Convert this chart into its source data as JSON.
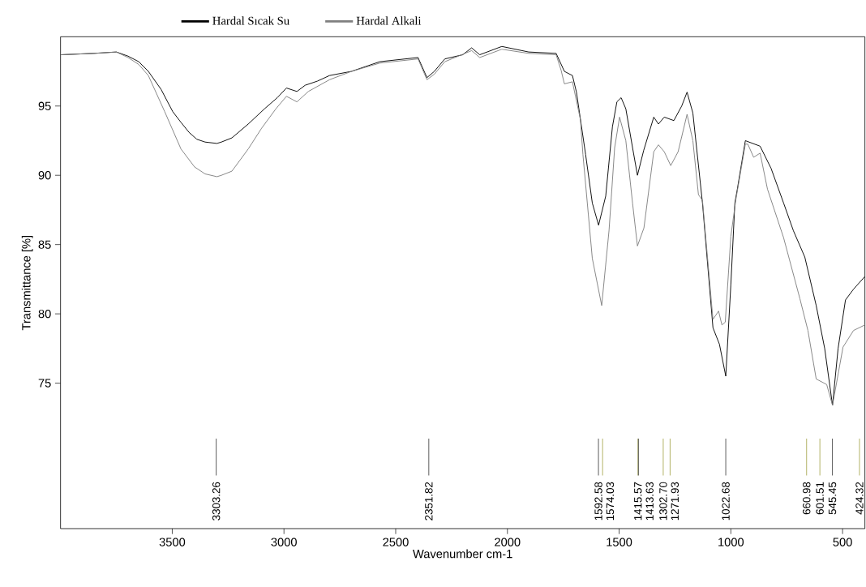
{
  "chart_data": {
    "type": "line",
    "xlabel": "Wavenumber cm-1",
    "ylabel": "Transmittance [%]",
    "xlim": [
      4000,
      400
    ],
    "xticks": [
      3500,
      3000,
      2500,
      2000,
      1500,
      1000,
      500
    ],
    "ylim": [
      64.5,
      100
    ],
    "yticks": [
      75,
      80,
      85,
      90,
      95
    ],
    "grid": false,
    "legend": "top",
    "marker": "none",
    "line_style": "solid",
    "series": [
      {
        "name": "Hardal Sıcak Su",
        "color": "#000000",
        "x": [
          4000,
          3850,
          3750,
          3698,
          3650,
          3607,
          3550,
          3498,
          3460,
          3425,
          3390,
          3353,
          3300,
          3280,
          3233,
          3160,
          3087,
          3030,
          2989,
          2942,
          2905,
          2850,
          2796,
          2698,
          2571,
          2400,
          2360,
          2327,
          2280,
          2200,
          2160,
          2124,
          2025,
          1905,
          1782,
          1745,
          1709,
          1691,
          1650,
          1620,
          1592,
          1560,
          1530,
          1510,
          1491,
          1470,
          1440,
          1418,
          1390,
          1345,
          1324,
          1298,
          1255,
          1220,
          1196,
          1170,
          1127,
          1080,
          1051,
          1035,
          1022.68,
          1000,
          982,
          971,
          935,
          869,
          820,
          764,
          720,
          669,
          618,
          580,
          545,
          520,
          487,
          450,
          400
        ],
        "values": [
          98.7,
          98.8,
          98.9,
          98.6,
          98.2,
          97.5,
          96.2,
          94.6,
          93.8,
          93.1,
          92.6,
          92.4,
          92.3,
          92.4,
          92.7,
          93.7,
          94.8,
          95.6,
          96.3,
          96.05,
          96.5,
          96.8,
          97.2,
          97.5,
          98.2,
          98.5,
          97.05,
          97.5,
          98.4,
          98.7,
          99.2,
          98.7,
          99.3,
          98.9,
          98.8,
          97.5,
          97.2,
          96.0,
          91.5,
          88.0,
          86.4,
          88.5,
          93.5,
          95.3,
          95.6,
          94.8,
          92.0,
          90.0,
          91.8,
          94.2,
          93.7,
          94.2,
          93.95,
          95.0,
          96.0,
          94.5,
          88.0,
          79.0,
          77.8,
          76.5,
          75.5,
          82.1,
          88.0,
          89.0,
          92.5,
          92.1,
          90.5,
          88.0,
          86.0,
          84.1,
          80.6,
          77.5,
          73.4,
          77.5,
          81.0,
          81.8,
          82.7
        ]
      },
      {
        "name": "Hardal Alkali",
        "color": "#808080",
        "x": [
          4000,
          3850,
          3750,
          3698,
          3650,
          3607,
          3534,
          3461,
          3400,
          3353,
          3300,
          3280,
          3233,
          3160,
          3100,
          3036,
          2989,
          2942,
          2891,
          2796,
          2698,
          2571,
          2400,
          2360,
          2327,
          2280,
          2160,
          2124,
          2025,
          1905,
          1782,
          1760,
          1745,
          1709,
          1673,
          1662,
          1620,
          1578,
          1545,
          1520,
          1498,
          1470,
          1440,
          1418,
          1389,
          1345,
          1324,
          1298,
          1269,
          1236,
          1196,
          1170,
          1145,
          1127,
          1080,
          1055,
          1040,
          1025,
          1000,
          978,
          935,
          924,
          898,
          869,
          836,
          764,
          691,
          655,
          618,
          571,
          545,
          498,
          451,
          400
        ],
        "values": [
          98.7,
          98.8,
          98.9,
          98.5,
          98.0,
          97.2,
          94.6,
          91.9,
          90.6,
          90.1,
          89.9,
          90.0,
          90.3,
          91.9,
          93.4,
          94.8,
          95.7,
          95.3,
          96.05,
          96.9,
          97.5,
          98.1,
          98.4,
          96.9,
          97.3,
          98.2,
          99.0,
          98.5,
          99.1,
          98.8,
          98.7,
          97.6,
          96.6,
          96.75,
          94.0,
          91.5,
          84.0,
          80.6,
          86.05,
          92.0,
          94.2,
          92.5,
          88.0,
          84.9,
          86.2,
          91.7,
          92.2,
          91.7,
          90.7,
          91.7,
          94.4,
          92.5,
          88.6,
          88.2,
          79.6,
          80.2,
          79.2,
          79.4,
          85.6,
          88.2,
          92.25,
          92.25,
          91.3,
          91.6,
          89.0,
          85.5,
          81.1,
          78.8,
          75.3,
          74.9,
          73.4,
          77.6,
          78.8,
          79.2
        ]
      }
    ],
    "ref_lines": [
      {
        "axis": "x",
        "value": 3303.26,
        "label": "3303.26",
        "color": "#333333"
      },
      {
        "axis": "x",
        "value": 2351.82,
        "label": "2351.82",
        "color": "#333333"
      },
      {
        "axis": "x",
        "value": 1592.58,
        "label": "1592.58",
        "color": "#333333"
      },
      {
        "axis": "x",
        "value": 1574.03,
        "label": "1574.03",
        "color": "#a0a040"
      },
      {
        "axis": "x",
        "value": 1415.57,
        "label": "1415.57",
        "color": "#a0a040"
      },
      {
        "axis": "x",
        "value": 1413.63,
        "label": "1413.63",
        "color": "#333333"
      },
      {
        "axis": "x",
        "value": 1302.7,
        "label": "1302.70",
        "color": "#a0a040"
      },
      {
        "axis": "x",
        "value": 1271.93,
        "label": "1271.93",
        "color": "#a0a040"
      },
      {
        "axis": "x",
        "value": 1022.68,
        "label": "1022.68",
        "color": "#333333"
      },
      {
        "axis": "x",
        "value": 660.98,
        "label": "660.98",
        "color": "#a0a040"
      },
      {
        "axis": "x",
        "value": 601.51,
        "label": "601.51",
        "color": "#a0a040"
      },
      {
        "axis": "x",
        "value": 545.45,
        "label": "545.45",
        "color": "#333333"
      },
      {
        "axis": "x",
        "value": 424.32,
        "label": "424.32",
        "color": "#a0a040"
      }
    ]
  }
}
